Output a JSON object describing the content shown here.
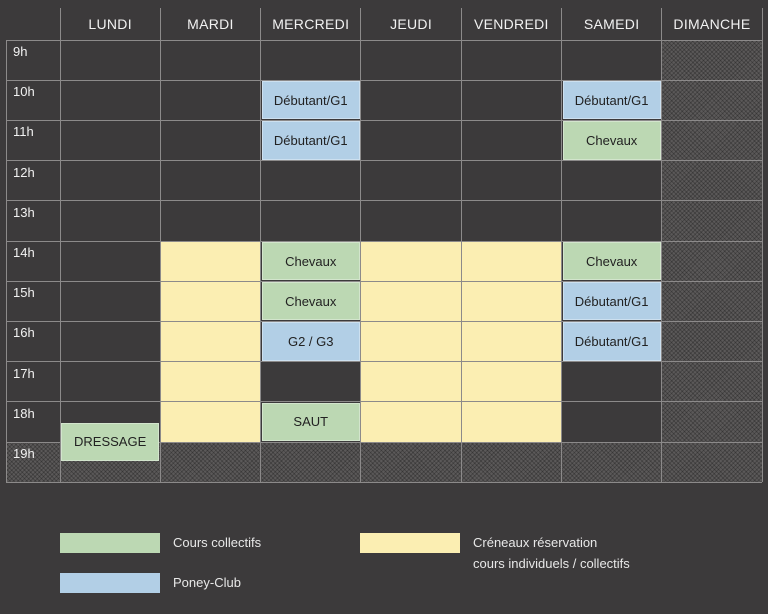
{
  "days": [
    "LUNDI",
    "MARDI",
    "MERCREDI",
    "JEUDI",
    "VENDREDI",
    "SAMEDI",
    "DIMANCHE"
  ],
  "hours": [
    "9h",
    "10h",
    "11h",
    "12h",
    "13h",
    "14h",
    "15h",
    "16h",
    "17h",
    "18h",
    "19h"
  ],
  "colors": {
    "background": "#3c3a3b",
    "gridline": "#8c8a8a",
    "green": "#bcd8b3",
    "blue": "#b2cfe6",
    "yellow": "#fbeeb2",
    "closed": "#5b5959"
  },
  "closed_day": "DIMANCHE",
  "closed_hour": "19h",
  "reservation_slots": [
    {
      "day": "MARDI",
      "from": "14h",
      "to": "19h"
    },
    {
      "day": "JEUDI",
      "from": "14h",
      "to": "19h"
    },
    {
      "day": "VENDREDI",
      "from": "14h",
      "to": "19h"
    }
  ],
  "events": [
    {
      "day": "MERCREDI",
      "from": "10h",
      "to": "11h",
      "type": "blue",
      "label": "Débutant/G1"
    },
    {
      "day": "MERCREDI",
      "from": "11h",
      "to": "12h",
      "type": "blue",
      "label": "Débutant/G1"
    },
    {
      "day": "MERCREDI",
      "from": "14h",
      "to": "15h",
      "type": "green",
      "label": "Chevaux"
    },
    {
      "day": "MERCREDI",
      "from": "15h",
      "to": "16h",
      "type": "green",
      "label": "Chevaux"
    },
    {
      "day": "MERCREDI",
      "from": "16h",
      "to": "17h",
      "type": "blue",
      "label": "G2 / G3"
    },
    {
      "day": "MERCREDI",
      "from": "18h",
      "to": "19h",
      "type": "green",
      "label": "SAUT"
    },
    {
      "day": "SAMEDI",
      "from": "10h",
      "to": "11h",
      "type": "blue",
      "label": "Débutant/G1"
    },
    {
      "day": "SAMEDI",
      "from": "11h",
      "to": "12h",
      "type": "green",
      "label": "Chevaux"
    },
    {
      "day": "SAMEDI",
      "from": "14h",
      "to": "15h",
      "type": "green",
      "label": "Chevaux"
    },
    {
      "day": "SAMEDI",
      "from": "15h",
      "to": "16h",
      "type": "blue",
      "label": "Débutant/G1"
    },
    {
      "day": "SAMEDI",
      "from": "16h",
      "to": "17h",
      "type": "blue",
      "label": "Débutant/G1"
    },
    {
      "day": "LUNDI",
      "from": "18.5h",
      "to": "19.5h",
      "type": "green",
      "label": "DRESSAGE"
    }
  ],
  "legend": {
    "collectifs": "Cours collectifs",
    "poney_club": "Poney-Club",
    "reservation_line1": "Créneaux réservation",
    "reservation_line2": "cours individuels / collectifs"
  }
}
